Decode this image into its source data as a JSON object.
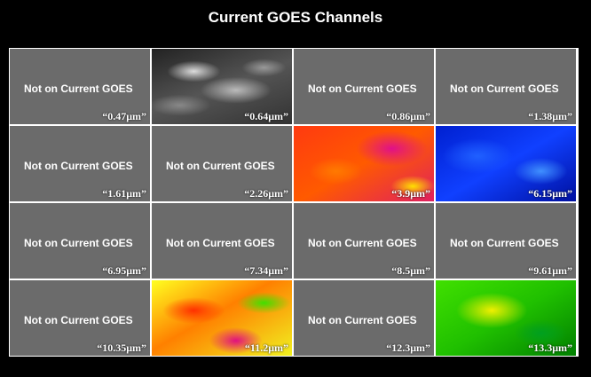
{
  "title": "Current GOES Channels",
  "cells": [
    {
      "note": "Not on Current GOES",
      "label": "“0.47μm”"
    },
    {
      "label": "“0.64μm”"
    },
    {
      "note": "Not on Current GOES",
      "label": "“0.86μm”"
    },
    {
      "note": "Not on Current GOES",
      "label": "“1.38μm”"
    },
    {
      "note": "Not on Current GOES",
      "label": "“1.61μm”"
    },
    {
      "note": "Not on Current GOES",
      "label": "“2.26μm”"
    },
    {
      "label": "“3.9μm”"
    },
    {
      "label": "“6.15μm”"
    },
    {
      "note": "Not on Current GOES",
      "label": "“6.95μm”"
    },
    {
      "note": "Not on Current GOES",
      "label": "“7.34μm”"
    },
    {
      "note": "Not on Current GOES",
      "label": "“8.5μm”"
    },
    {
      "note": "Not on Current GOES",
      "label": "“9.61μm”"
    },
    {
      "note": "Not on Current GOES",
      "label": "“10.35μm”"
    },
    {
      "label": "“11.2μm”"
    },
    {
      "note": "Not on Current GOES",
      "label": "“12.3μm”"
    },
    {
      "label": "“13.3μm”"
    }
  ]
}
